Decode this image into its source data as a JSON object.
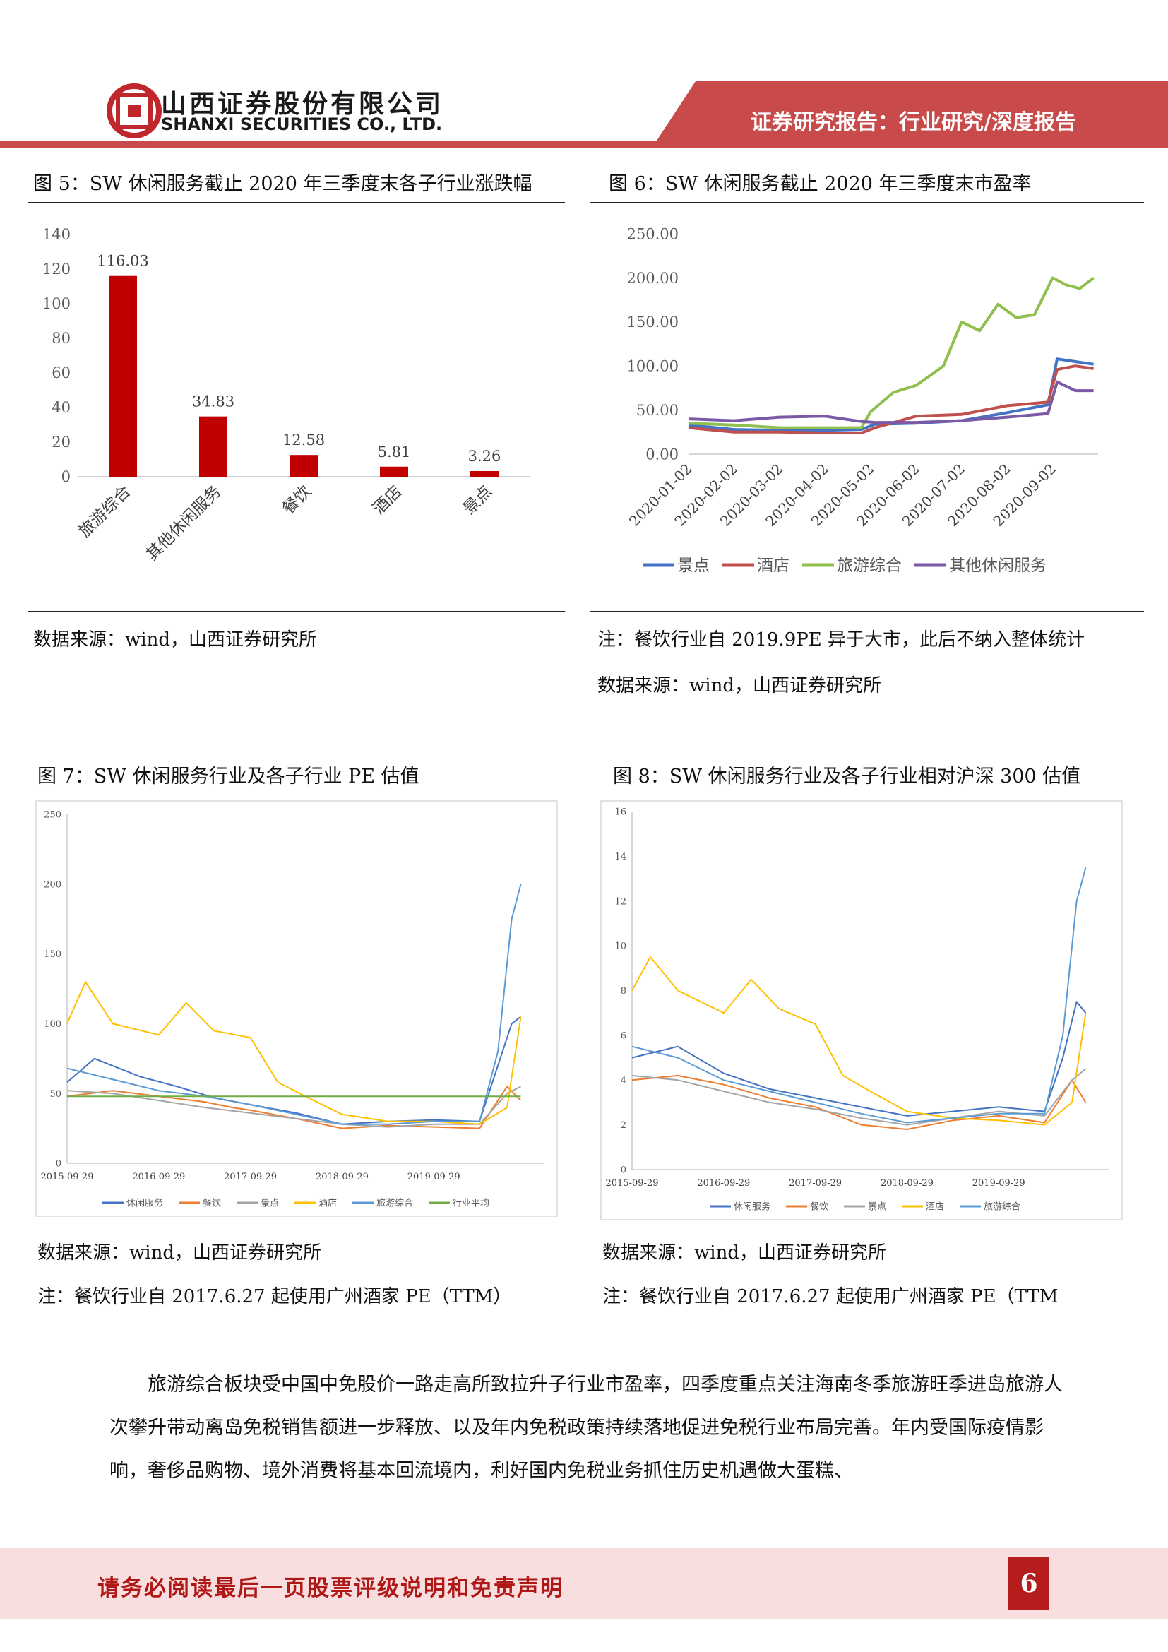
{
  "header": {
    "company_cn": "山西证券股份有限公司",
    "company_en": "SHANXI SECURITIES CO., LTD.",
    "banner": "证券研究报告：行业研究/深度报告"
  },
  "figures": {
    "fig5": {
      "title": "图 5：SW 休闲服务截止 2020 年三季度末各子行业涨跌幅",
      "source": "数据来源：wind，山西证券研究所"
    },
    "fig6": {
      "title": "图 6：SW 休闲服务截止 2020 年三季度末市盈率",
      "note": "注：餐饮行业自 2019.9PE 异于大市，此后不纳入整体统计",
      "source": "数据来源：wind，山西证券研究所"
    },
    "fig7": {
      "title": "图 7：SW 休闲服务行业及各子行业 PE 估值",
      "source": "数据来源：wind，山西证券研究所",
      "note": "注：餐饮行业自 2017.6.27 起使用广州酒家 PE（TTM）"
    },
    "fig8": {
      "title": "图 8：SW 休闲服务行业及各子行业相对沪深 300 估值",
      "source": "数据来源：wind，山西证券研究所",
      "note": "注：餐饮行业自 2017.6.27 起使用广州酒家 PE（TTM"
    }
  },
  "body": {
    "paragraph": "旅游综合板块受中国中免股价一路走高所致拉升子行业市盈率，四季度重点关注海南冬季旅游旺季进岛旅游人次攀升带动离岛免税销售额进一步释放、以及年内免税政策持续落地促进免税行业布局完善。年内受国际疫情影响，奢侈品购物、境外消费将基本回流境内，利好国内免税业务抓住历史机遇做大蛋糕、"
  },
  "footer": {
    "disclaimer": "请务必阅读最后一页股票评级说明和免责声明",
    "page": "6"
  },
  "colors": {
    "brand_red": "#c0272d",
    "bar_red": "#c00000",
    "blue": "#4472c4",
    "orange": "#ed7d31",
    "gray": "#a5a5a5",
    "gold": "#ffc000",
    "light_blue": "#5b9bd5",
    "green": "#70ad47",
    "purple": "#7a5aa6"
  },
  "chart_data": [
    {
      "id": "fig5",
      "type": "bar",
      "categories": [
        "旅游综合",
        "其他休闲服务",
        "餐饮",
        "酒店",
        "景点"
      ],
      "values": [
        116.03,
        34.83,
        12.58,
        5.81,
        3.26
      ],
      "value_labels": [
        "116.03",
        "34.83",
        "12.58",
        "5.81",
        "3.26"
      ],
      "ylim": [
        0,
        140
      ],
      "yticks": [
        "0",
        "20",
        "40",
        "60",
        "80",
        "100",
        "120",
        "140"
      ],
      "grid": false
    },
    {
      "id": "fig6",
      "type": "line",
      "x_labels": [
        "2020-01-02",
        "2020-02-02",
        "2020-03-02",
        "2020-04-02",
        "2020-05-02",
        "2020-06-02",
        "2020-07-02",
        "2020-08-02",
        "2020-09-02"
      ],
      "ylim": [
        0,
        250
      ],
      "yticks": [
        "0.00",
        "50.00",
        "100.00",
        "150.00",
        "200.00",
        "250.00"
      ],
      "legend_position": "bottom",
      "series": [
        {
          "name": "景点",
          "color": "#4472c4",
          "x": [
            0,
            1,
            2,
            3,
            3.8,
            4.1,
            5,
            6,
            7,
            7.9,
            8.1,
            8.5,
            8.9
          ],
          "y": [
            33,
            28,
            27,
            27,
            28,
            34,
            35,
            38,
            47,
            56,
            108,
            105,
            102
          ]
        },
        {
          "name": "酒店",
          "color": "#c0504d",
          "x": [
            0,
            1,
            2,
            3,
            3.8,
            4.1,
            5,
            6,
            7,
            7.9,
            8.1,
            8.5,
            8.9
          ],
          "y": [
            30,
            25,
            25,
            24,
            24,
            30,
            43,
            45,
            55,
            59,
            96,
            100,
            97
          ]
        },
        {
          "name": "旅游综合",
          "color": "#8fbf4d",
          "x": [
            0,
            1,
            2,
            3,
            3.8,
            4.0,
            4.5,
            5,
            5.6,
            6,
            6.4,
            6.8,
            7.2,
            7.6,
            8.0,
            8.3,
            8.6,
            8.9
          ],
          "y": [
            35,
            33,
            30,
            30,
            30,
            48,
            70,
            78,
            100,
            150,
            140,
            170,
            155,
            158,
            200,
            192,
            188,
            200
          ]
        },
        {
          "name": "其他休闲服务",
          "color": "#7a5aa6",
          "x": [
            0,
            1,
            2,
            3,
            3.8,
            4.1,
            5,
            6,
            7,
            7.9,
            8.1,
            8.5,
            8.9
          ],
          "y": [
            40,
            38,
            42,
            43,
            37,
            36,
            36,
            38,
            42,
            46,
            82,
            72,
            72
          ]
        }
      ]
    },
    {
      "id": "fig7",
      "type": "line",
      "x_labels": [
        "2015-09-29",
        "2016-09-29",
        "2017-09-29",
        "2018-09-29",
        "2019-09-29"
      ],
      "ylim": [
        0,
        250
      ],
      "yticks": [
        "0",
        "50",
        "100",
        "150",
        "200",
        "250"
      ],
      "legend_position": "bottom",
      "series": [
        {
          "name": "休闲服务",
          "color": "#4472c4",
          "x": [
            0,
            0.3,
            0.8,
            1.2,
            1.6,
            2.0,
            2.5,
            3.0,
            3.5,
            4.0,
            4.5,
            4.7,
            4.85,
            4.95
          ],
          "y": [
            58,
            75,
            62,
            55,
            47,
            42,
            36,
            28,
            30,
            31,
            30,
            70,
            100,
            105
          ]
        },
        {
          "name": "餐饮",
          "color": "#ed7d31",
          "x": [
            0,
            0.5,
            1.0,
            1.5,
            1.8,
            2.0,
            2.5,
            3.0,
            3.5,
            4.0,
            4.5,
            4.8,
            4.95
          ],
          "y": [
            48,
            52,
            48,
            44,
            40,
            38,
            32,
            25,
            27,
            26,
            25,
            55,
            45
          ]
        },
        {
          "name": "景点",
          "color": "#a5a5a5",
          "x": [
            0,
            0.5,
            1.0,
            1.5,
            2.0,
            2.5,
            3.0,
            3.5,
            4.0,
            4.5,
            4.8,
            4.95
          ],
          "y": [
            52,
            50,
            45,
            40,
            36,
            32,
            28,
            26,
            28,
            28,
            50,
            55
          ]
        },
        {
          "name": "酒店",
          "color": "#ffc000",
          "x": [
            0,
            0.2,
            0.5,
            1.0,
            1.3,
            1.6,
            2.0,
            2.3,
            2.6,
            3.0,
            3.5,
            4.0,
            4.5,
            4.8,
            4.95
          ],
          "y": [
            100,
            130,
            100,
            92,
            115,
            95,
            90,
            58,
            48,
            35,
            30,
            30,
            28,
            40,
            105
          ]
        },
        {
          "name": "旅游综合",
          "color": "#5b9bd5",
          "x": [
            0,
            0.5,
            1.0,
            1.5,
            2.0,
            2.5,
            3.0,
            3.5,
            4.0,
            4.5,
            4.7,
            4.85,
            4.95
          ],
          "y": [
            68,
            60,
            52,
            48,
            42,
            35,
            28,
            28,
            30,
            30,
            80,
            175,
            200
          ]
        },
        {
          "name": "行业平均",
          "color": "#70ad47",
          "x": [
            0,
            4.95
          ],
          "y": [
            48,
            48
          ]
        }
      ]
    },
    {
      "id": "fig8",
      "type": "line",
      "x_labels": [
        "2015-09-29",
        "2016-09-29",
        "2017-09-29",
        "2018-09-29",
        "2019-09-29"
      ],
      "ylim": [
        0,
        16
      ],
      "yticks": [
        "0",
        "2",
        "4",
        "6",
        "8",
        "10",
        "12",
        "14",
        "16"
      ],
      "legend_position": "bottom",
      "series": [
        {
          "name": "休闲服务",
          "color": "#4472c4",
          "x": [
            0,
            0.5,
            1.0,
            1.5,
            2.0,
            2.5,
            3.0,
            3.5,
            4.0,
            4.5,
            4.7,
            4.85,
            4.95
          ],
          "y": [
            5.0,
            5.5,
            4.3,
            3.6,
            3.2,
            2.8,
            2.4,
            2.6,
            2.8,
            2.6,
            5.0,
            7.5,
            7.0
          ]
        },
        {
          "name": "餐饮",
          "color": "#ed7d31",
          "x": [
            0,
            0.5,
            1.0,
            1.5,
            2.0,
            2.5,
            3.0,
            3.5,
            4.0,
            4.5,
            4.8,
            4.95
          ],
          "y": [
            4.0,
            4.2,
            3.8,
            3.2,
            2.8,
            2.0,
            1.8,
            2.2,
            2.4,
            2.1,
            4.0,
            3.0
          ]
        },
        {
          "name": "景点",
          "color": "#a5a5a5",
          "x": [
            0,
            0.5,
            1.0,
            1.5,
            2.0,
            2.5,
            3.0,
            3.5,
            4.0,
            4.5,
            4.8,
            4.95
          ],
          "y": [
            4.2,
            4.0,
            3.5,
            3.0,
            2.7,
            2.3,
            2.0,
            2.3,
            2.6,
            2.4,
            4.0,
            4.5
          ]
        },
        {
          "name": "酒店",
          "color": "#ffc000",
          "x": [
            0,
            0.2,
            0.5,
            1.0,
            1.3,
            1.6,
            2.0,
            2.3,
            2.6,
            3.0,
            3.5,
            4.0,
            4.5,
            4.8,
            4.95
          ],
          "y": [
            8.0,
            9.5,
            8.0,
            7.0,
            8.5,
            7.2,
            6.5,
            4.2,
            3.5,
            2.6,
            2.3,
            2.2,
            2.0,
            3.0,
            7.0
          ]
        },
        {
          "name": "旅游综合",
          "color": "#5b9bd5",
          "x": [
            0,
            0.5,
            1.0,
            1.5,
            2.0,
            2.5,
            3.0,
            3.5,
            4.0,
            4.5,
            4.7,
            4.85,
            4.95
          ],
          "y": [
            5.5,
            5.0,
            4.0,
            3.5,
            3.0,
            2.5,
            2.1,
            2.3,
            2.5,
            2.5,
            6.0,
            12.0,
            13.5
          ]
        }
      ]
    }
  ]
}
